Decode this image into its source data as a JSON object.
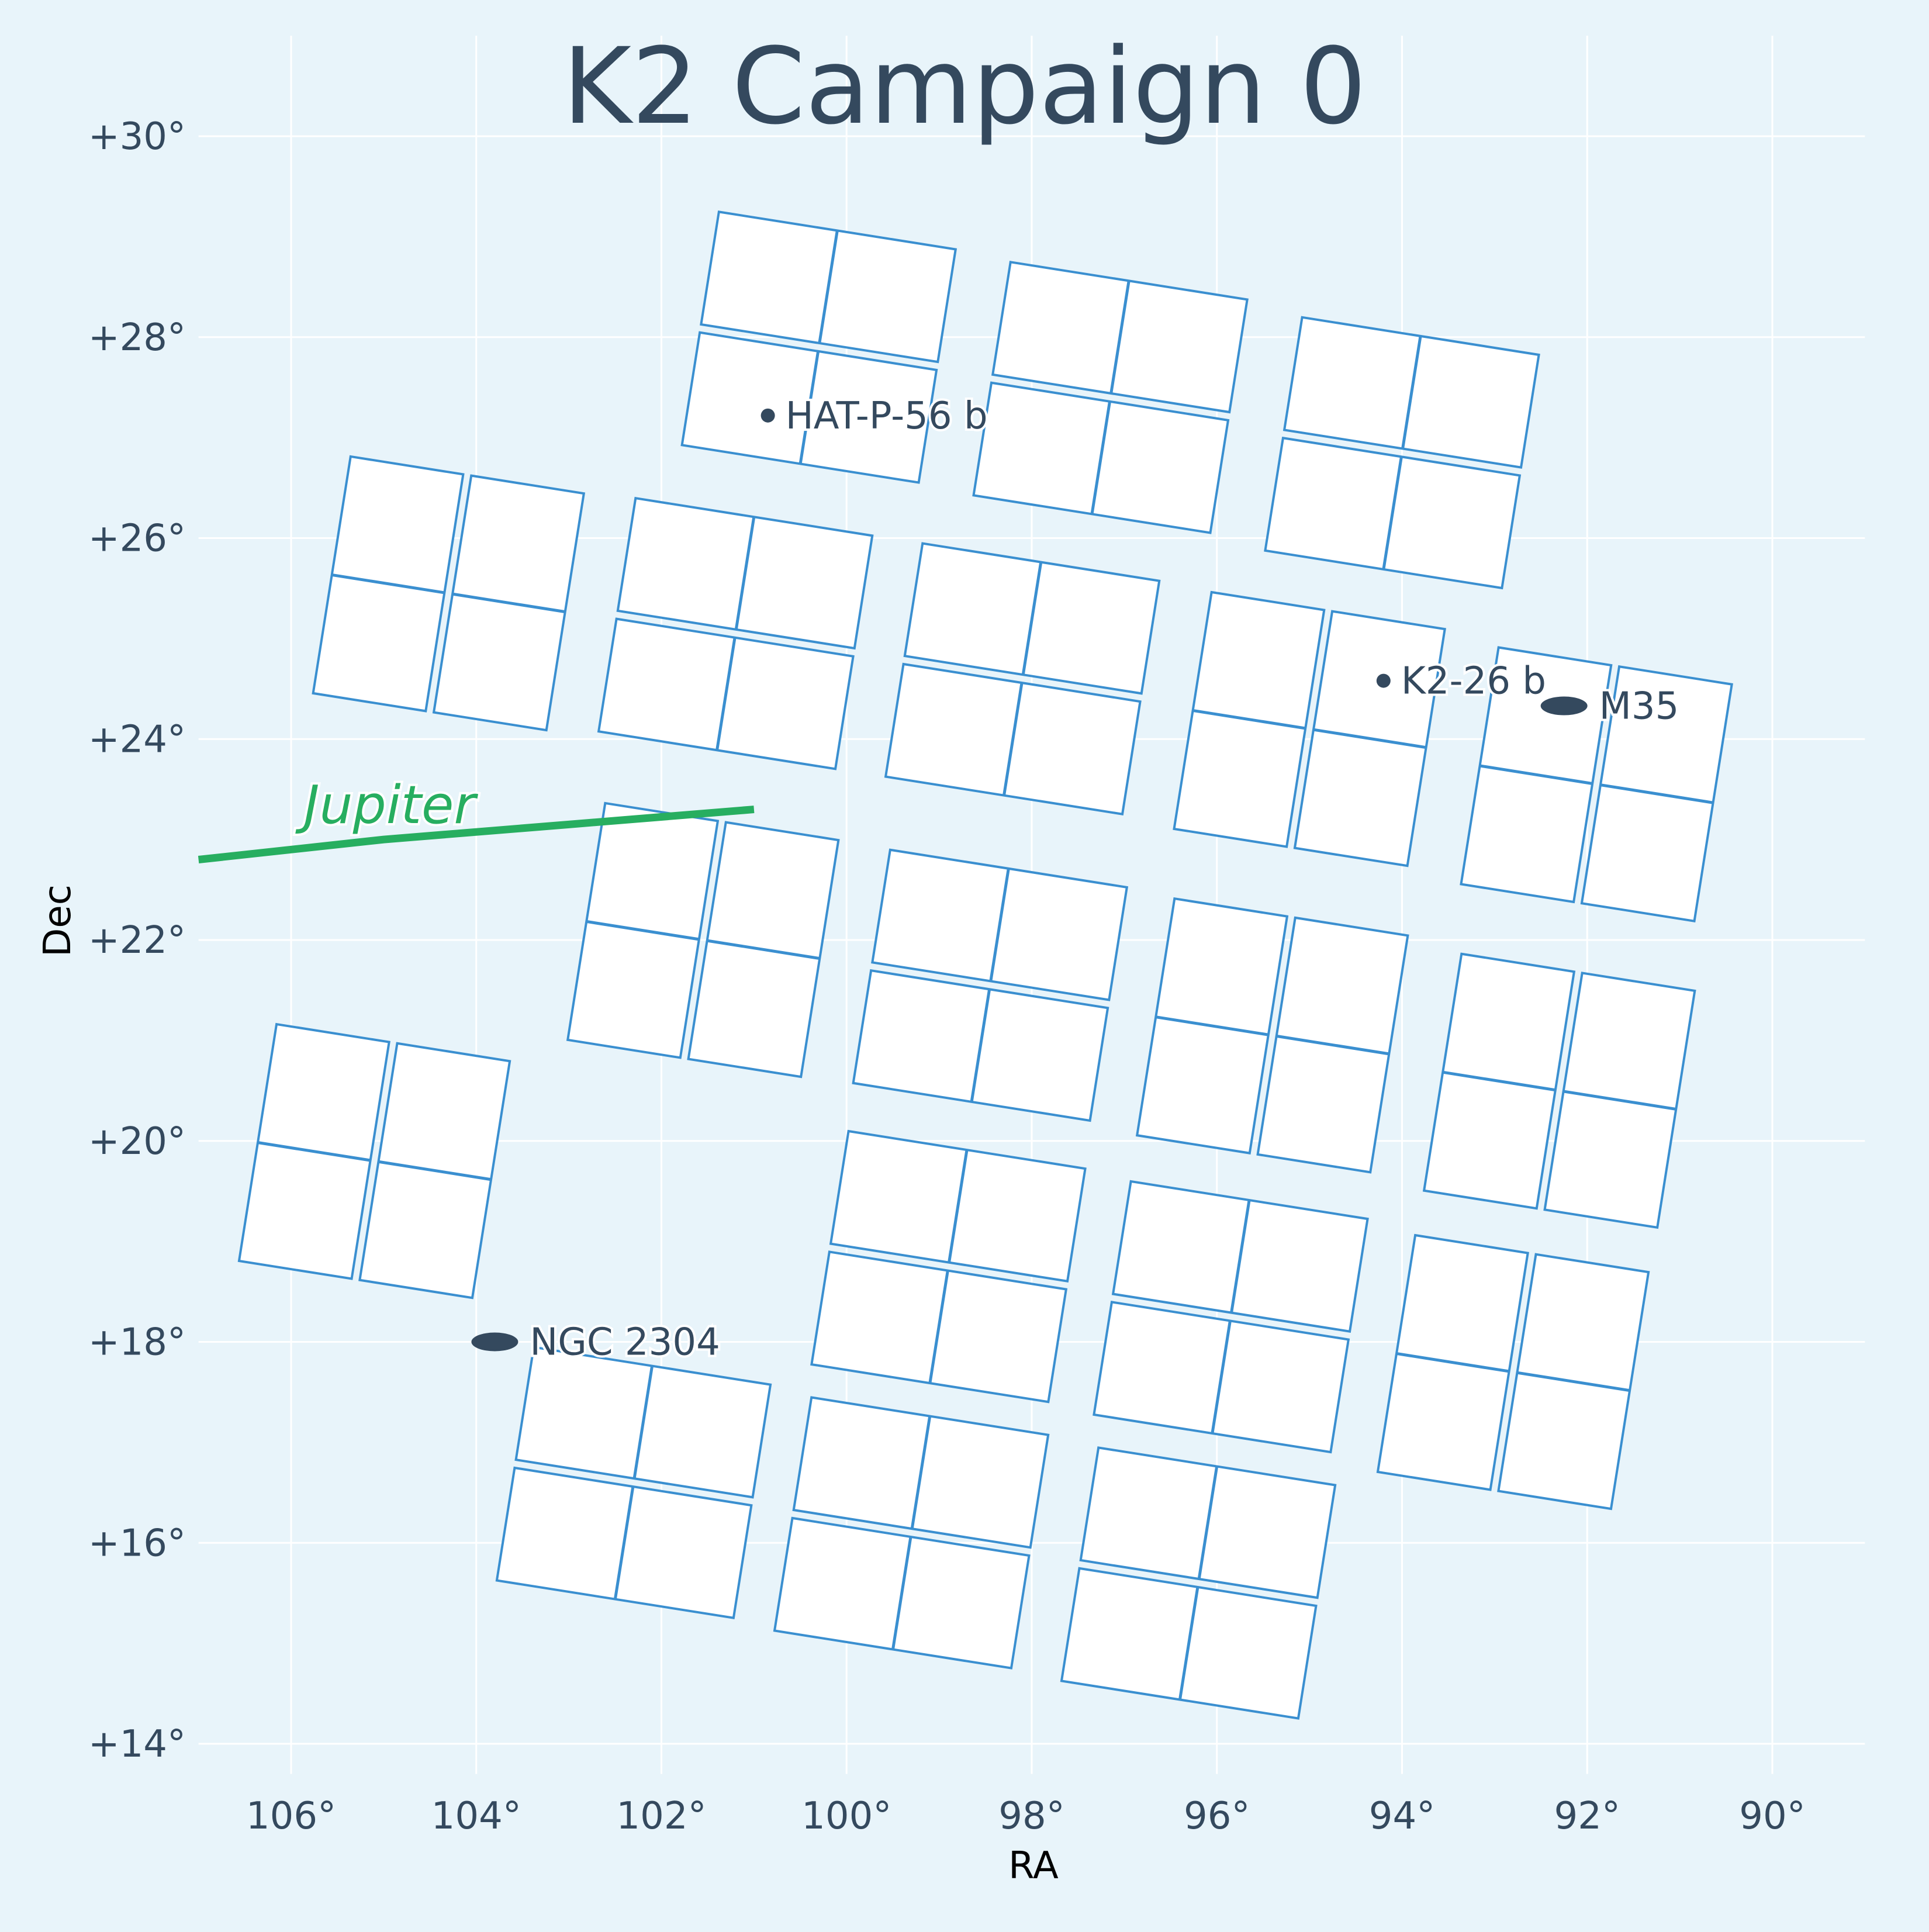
{
  "chart_data": {
    "type": "scatter",
    "title": "K2 Campaign 0",
    "xlabel": "RA",
    "ylabel": "Dec",
    "xlim": [
      107,
      89
    ],
    "ylim": [
      13.7,
      31
    ],
    "x_ticks": [
      106,
      104,
      102,
      100,
      98,
      96,
      94,
      92,
      90
    ],
    "x_tick_labels": [
      "106°",
      "104°",
      "102°",
      "100°",
      "98°",
      "96°",
      "94°",
      "92°",
      "90°"
    ],
    "y_ticks": [
      30,
      28,
      26,
      24,
      22,
      20,
      18,
      16,
      14
    ],
    "y_tick_labels": [
      "+30°",
      "+28°",
      "+26°",
      "+24°",
      "+22°",
      "+20°",
      "+18°",
      "+16°",
      "+14°"
    ],
    "grid": true,
    "modules": [
      {
        "ra": 100.3,
        "dec": 27.9
      },
      {
        "ra": 97.15,
        "dec": 27.4
      },
      {
        "ra": 94.0,
        "dec": 26.85
      },
      {
        "ra": 104.3,
        "dec": 25.45
      },
      {
        "ra": 101.2,
        "dec": 25.05
      },
      {
        "ra": 98.1,
        "dec": 24.6
      },
      {
        "ra": 95.0,
        "dec": 24.1
      },
      {
        "ra": 91.9,
        "dec": 23.55
      },
      {
        "ra": 101.55,
        "dec": 22.0
      },
      {
        "ra": 98.45,
        "dec": 21.55
      },
      {
        "ra": 95.4,
        "dec": 21.05
      },
      {
        "ra": 92.3,
        "dec": 20.5
      },
      {
        "ra": 105.1,
        "dec": 19.8
      },
      {
        "ra": 98.9,
        "dec": 18.75
      },
      {
        "ra": 95.85,
        "dec": 18.25
      },
      {
        "ra": 92.8,
        "dec": 17.7
      },
      {
        "ra": 102.3,
        "dec": 16.6
      },
      {
        "ra": 99.3,
        "dec": 16.1
      },
      {
        "ra": 96.2,
        "dec": 15.6
      }
    ],
    "module_orientation": [
      "horizontal",
      "horizontal",
      "horizontal",
      "vertical",
      "horizontal",
      "horizontal",
      "vertical",
      "vertical",
      "vertical",
      "horizontal",
      "vertical",
      "vertical",
      "vertical",
      "horizontal",
      "horizontal",
      "vertical",
      "horizontal",
      "horizontal",
      "horizontal"
    ],
    "targets": [
      {
        "name": "HAT-P-56 b",
        "ra": 100.85,
        "dec": 27.22,
        "marker": "dot"
      },
      {
        "name": "K2-26 b",
        "ra": 94.2,
        "dec": 24.58,
        "marker": "dot"
      },
      {
        "name": "M35",
        "ra": 92.25,
        "dec": 24.33,
        "marker": "ellipse"
      },
      {
        "name": "NGC 2304",
        "ra": 103.8,
        "dec": 18.0,
        "marker": "ellipse"
      }
    ],
    "jupiter": {
      "label": "Jupiter",
      "path": [
        [
          107.0,
          22.8
        ],
        [
          105.0,
          23.0
        ],
        [
          103.0,
          23.15
        ],
        [
          101.0,
          23.3
        ]
      ]
    },
    "colors": {
      "background": "#e8f4fa",
      "grid": "#ffffff",
      "module_edge": "#3a8fd0",
      "module_fill": "#ffffff",
      "text": "#34495e",
      "jupiter": "#27ae60"
    }
  }
}
